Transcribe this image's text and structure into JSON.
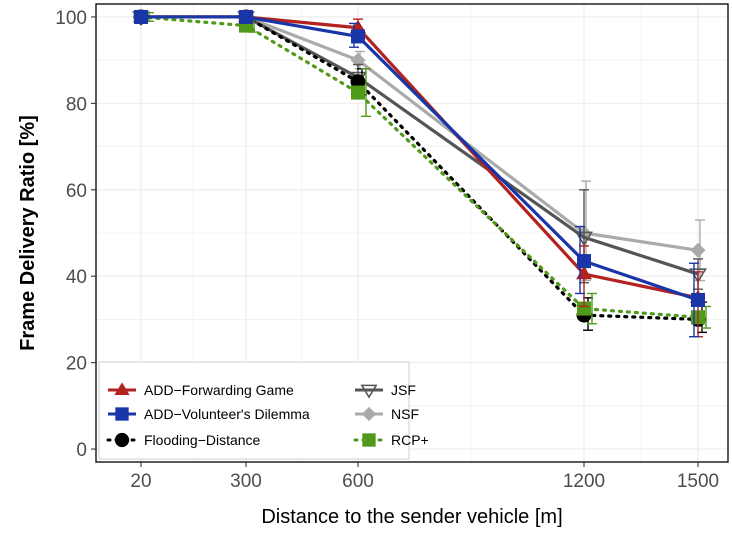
{
  "chart_data": {
    "type": "line",
    "xlabel": "Distance to the sender vehicle [m]",
    "ylabel": "Frame Delivery Ratio [%]",
    "x": [
      20,
      300,
      600,
      1200,
      1500
    ],
    "x_tick_labels": [
      "20",
      "300",
      "600",
      "1200",
      "1500"
    ],
    "y_ticks": [
      0,
      20,
      40,
      60,
      80,
      100
    ],
    "ylim": [
      -3,
      103
    ],
    "grid": true,
    "legend_position": "bottom-left",
    "series": [
      {
        "name": "ADD−Forwarding Game",
        "color": "#b2221f",
        "marker": "triangle-up",
        "line_style": "solid",
        "values": [
          100,
          100,
          97.5,
          40.5,
          35
        ],
        "error": [
          [
            100,
            100
          ],
          [
            100,
            100
          ],
          [
            94.5,
            99.5
          ],
          [
            33,
            47
          ],
          [
            26,
            41
          ]
        ]
      },
      {
        "name": "ADD−Volunteer's Dilemma",
        "color": "#1836a8",
        "marker": "square",
        "line_style": "solid",
        "values": [
          100,
          100,
          95.5,
          43.5,
          34.5
        ],
        "error": [
          [
            100,
            100
          ],
          [
            100,
            100
          ],
          [
            93,
            98.5
          ],
          [
            36,
            51.5
          ],
          [
            26,
            43
          ]
        ]
      },
      {
        "name": "Flooding−Distance",
        "color": "#000000",
        "marker": "circle",
        "line_style": "dotted",
        "values": [
          100,
          100,
          85,
          31,
          30
        ],
        "error": [
          [
            100,
            100
          ],
          [
            100,
            100
          ],
          [
            82,
            88
          ],
          [
            27.5,
            35
          ],
          [
            27,
            34
          ]
        ]
      },
      {
        "name": "JSF",
        "color": "#555555",
        "marker": "triangle-down-open",
        "line_style": "solid",
        "values": [
          100,
          100,
          86,
          49,
          40.5
        ],
        "error": [
          [
            100,
            100
          ],
          [
            100,
            100
          ],
          [
            84,
            89
          ],
          [
            38.5,
            60
          ],
          [
            37,
            44
          ]
        ]
      },
      {
        "name": "NSF",
        "color": "#aaaaaa",
        "marker": "diamond",
        "line_style": "solid",
        "values": [
          100,
          100,
          90,
          50,
          46
        ],
        "error": [
          [
            100,
            100
          ],
          [
            100,
            100
          ],
          [
            88,
            92
          ],
          [
            39,
            62
          ],
          [
            39,
            53
          ]
        ]
      },
      {
        "name": "RCP+",
        "color": "#4f9a18",
        "marker": "square",
        "line_style": "dotted",
        "values": [
          100,
          98,
          82.5,
          32.5,
          30.5
        ],
        "error": [
          [
            99,
            101
          ],
          [
            96.5,
            99.5
          ],
          [
            77,
            88
          ],
          [
            29,
            36
          ],
          [
            28,
            33
          ]
        ]
      }
    ]
  }
}
